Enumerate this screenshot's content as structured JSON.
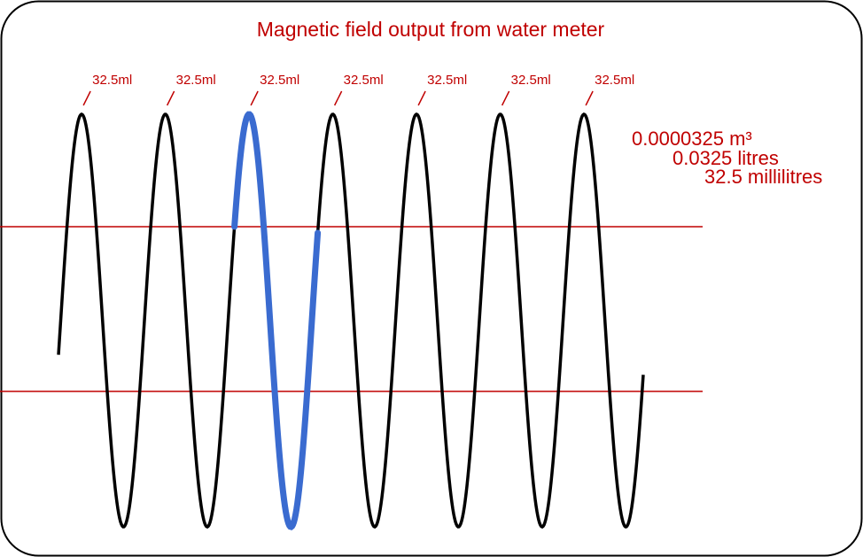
{
  "title": "Magnetic field output from water meter",
  "peak_labels": [
    "32.5ml",
    "32.5ml",
    "32.5ml",
    "32.5ml",
    "32.5ml",
    "32.5ml",
    "32.5ml"
  ],
  "conversions": [
    "0.0000325 m³",
    "0.0325 litres",
    "32.5 millilitres"
  ]
}
